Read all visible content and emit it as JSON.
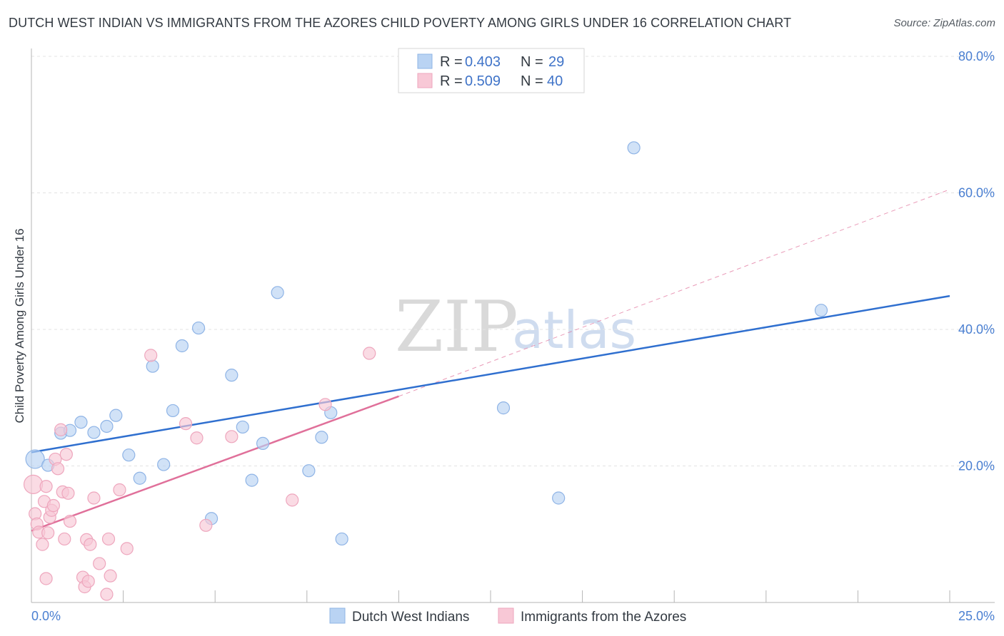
{
  "title": "DUTCH WEST INDIAN VS IMMIGRANTS FROM THE AZORES CHILD POVERTY AMONG GIRLS UNDER 16 CORRELATION CHART",
  "source": "Source: ZipAtlas.com",
  "watermark": {
    "zip": "ZIP",
    "atlas": "atlas"
  },
  "colors": {
    "blue_fill": "#b9d3f3",
    "blue_stroke": "#8fb4e6",
    "blue_line": "#2f6fcf",
    "pink_fill": "#f8c8d6",
    "pink_stroke": "#eea6bd",
    "pink_line": "#e0709a",
    "tick_text": "#4a7fd1",
    "grid": "#e3e3e3"
  },
  "legend": {
    "rows": [
      {
        "r_label": "R =",
        "r_value": "0.403",
        "n_label": "N =",
        "n_value": "29"
      },
      {
        "r_label": "R =",
        "r_value": "0.509",
        "n_label": "N =",
        "n_value": "40"
      }
    ]
  },
  "chart_data": {
    "type": "scatter",
    "title": "DUTCH WEST INDIAN VS IMMIGRANTS FROM THE AZORES CHILD POVERTY AMONG GIRLS UNDER 16 CORRELATION CHART",
    "xlabel": "",
    "ylabel": "Child Poverty Among Girls Under 16",
    "xlim": [
      0,
      25
    ],
    "ylim": [
      0,
      80
    ],
    "x_tick_labels": [
      "0.0%",
      "25.0%"
    ],
    "y_ticks": [
      20,
      40,
      60,
      80
    ],
    "y_tick_labels": [
      "20.0%",
      "40.0%",
      "60.0%",
      "80.0%"
    ],
    "grid": true,
    "legend_position": "top-center",
    "series": [
      {
        "name": "Dutch West Indians",
        "R": 0.403,
        "N": 29,
        "trend": {
          "x": [
            0,
            25
          ],
          "y": [
            22.0,
            44.9
          ],
          "dashed_to": null
        },
        "points": [
          [
            0.1,
            21.0
          ],
          [
            0.45,
            20.1
          ],
          [
            0.8,
            24.8
          ],
          [
            1.05,
            25.2
          ],
          [
            1.35,
            26.4
          ],
          [
            1.7,
            24.9
          ],
          [
            2.05,
            25.8
          ],
          [
            2.3,
            27.4
          ],
          [
            2.65,
            21.6
          ],
          [
            2.95,
            18.2
          ],
          [
            3.3,
            34.6
          ],
          [
            3.6,
            20.2
          ],
          [
            3.85,
            28.1
          ],
          [
            4.1,
            37.6
          ],
          [
            4.55,
            40.2
          ],
          [
            4.9,
            12.3
          ],
          [
            5.45,
            33.3
          ],
          [
            5.75,
            25.7
          ],
          [
            6.0,
            17.9
          ],
          [
            6.3,
            23.3
          ],
          [
            6.7,
            45.4
          ],
          [
            7.55,
            19.3
          ],
          [
            7.9,
            24.2
          ],
          [
            8.15,
            27.8
          ],
          [
            8.45,
            9.3
          ],
          [
            12.85,
            28.5
          ],
          [
            14.35,
            15.3
          ],
          [
            16.4,
            66.6
          ],
          [
            21.5,
            42.8
          ]
        ]
      },
      {
        "name": "Immigrants from the Azores",
        "R": 0.509,
        "N": 40,
        "trend": {
          "x": [
            0,
            10.0
          ],
          "y": [
            10.5,
            30.2
          ],
          "dashed_to": [
            25.0,
            60.5
          ]
        },
        "points": [
          [
            0.05,
            17.3
          ],
          [
            0.1,
            13.0
          ],
          [
            0.15,
            11.5
          ],
          [
            0.2,
            10.3
          ],
          [
            0.3,
            8.5
          ],
          [
            0.35,
            14.8
          ],
          [
            0.4,
            3.5
          ],
          [
            0.4,
            17.0
          ],
          [
            0.45,
            10.2
          ],
          [
            0.5,
            12.5
          ],
          [
            0.55,
            13.5
          ],
          [
            0.6,
            14.2
          ],
          [
            0.65,
            21.0
          ],
          [
            0.72,
            19.6
          ],
          [
            0.8,
            25.3
          ],
          [
            0.85,
            16.2
          ],
          [
            0.9,
            9.3
          ],
          [
            0.95,
            21.7
          ],
          [
            1.0,
            16.0
          ],
          [
            1.05,
            11.9
          ],
          [
            1.4,
            3.7
          ],
          [
            1.45,
            2.3
          ],
          [
            1.5,
            9.2
          ],
          [
            1.55,
            3.1
          ],
          [
            1.6,
            8.5
          ],
          [
            1.7,
            15.3
          ],
          [
            1.85,
            5.7
          ],
          [
            2.05,
            1.2
          ],
          [
            2.1,
            9.3
          ],
          [
            2.15,
            3.9
          ],
          [
            2.4,
            16.5
          ],
          [
            2.6,
            7.9
          ],
          [
            3.25,
            36.2
          ],
          [
            4.2,
            26.2
          ],
          [
            4.5,
            24.1
          ],
          [
            4.75,
            11.3
          ],
          [
            5.45,
            24.3
          ],
          [
            7.1,
            15.0
          ],
          [
            8.0,
            29.0
          ],
          [
            9.2,
            36.5
          ]
        ]
      }
    ]
  }
}
